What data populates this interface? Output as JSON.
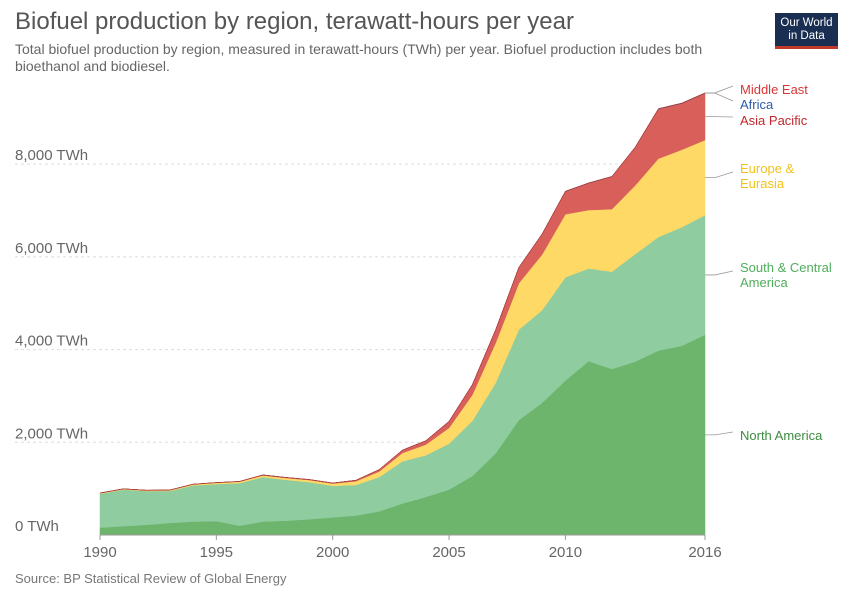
{
  "header": {
    "title": "Biofuel production by region, terawatt-hours per year",
    "subtitle": "Total biofuel production by region, measured in terawatt-hours (TWh) per year. Biofuel production includes both bioethanol and biodiesel.",
    "logo_line1": "Our World",
    "logo_line2": "in Data"
  },
  "footer": {
    "source": "Source: BP Statistical Review of Global Energy"
  },
  "chart_data": {
    "type": "area",
    "stacked": true,
    "title": "Biofuel production by region, terawatt-hours per year",
    "xlabel": "",
    "ylabel": "",
    "x": [
      1990,
      1991,
      1992,
      1993,
      1994,
      1995,
      1996,
      1997,
      1998,
      1999,
      2000,
      2001,
      2002,
      2003,
      2004,
      2005,
      2006,
      2007,
      2008,
      2009,
      2010,
      2011,
      2012,
      2013,
      2014,
      2015,
      2016
    ],
    "xlim": [
      1990,
      2016
    ],
    "ylim": [
      0,
      9600
    ],
    "x_ticks": [
      {
        "value": 1990,
        "label": "1990"
      },
      {
        "value": 1995,
        "label": "1995"
      },
      {
        "value": 2000,
        "label": "2000"
      },
      {
        "value": 2005,
        "label": "2005"
      },
      {
        "value": 2010,
        "label": "2010"
      },
      {
        "value": 2016,
        "label": "2016"
      }
    ],
    "y_ticks": [
      {
        "value": 0,
        "label": "0 TWh"
      },
      {
        "value": 2000,
        "label": "2,000 TWh"
      },
      {
        "value": 4000,
        "label": "4,000 TWh"
      },
      {
        "value": 6000,
        "label": "6,000 TWh"
      },
      {
        "value": 8000,
        "label": "8,000 TWh"
      }
    ],
    "grid": "horizontal",
    "legend_position": "right",
    "series": [
      {
        "name": "North America",
        "color": "#6db46d",
        "values": [
          160,
          190,
          220,
          260,
          290,
          300,
          200,
          290,
          310,
          340,
          380,
          420,
          510,
          680,
          820,
          980,
          1270,
          1760,
          2480,
          2850,
          3330,
          3750,
          3580,
          3740,
          3980,
          4080,
          4320
        ]
      },
      {
        "name": "South & Central America",
        "color": "#8fcc9f",
        "values": [
          730,
          790,
          730,
          690,
          780,
          800,
          920,
          960,
          880,
          800,
          680,
          660,
          740,
          910,
          900,
          990,
          1190,
          1520,
          1950,
          2000,
          2230,
          2000,
          2100,
          2320,
          2450,
          2560,
          2580
        ]
      },
      {
        "name": "Europe & Eurasia",
        "color": "#ffd966",
        "values": [
          10,
          10,
          10,
          15,
          20,
          25,
          30,
          35,
          40,
          45,
          50,
          80,
          120,
          180,
          230,
          340,
          560,
          860,
          1000,
          1200,
          1360,
          1260,
          1350,
          1480,
          1690,
          1670,
          1620
        ]
      },
      {
        "name": "Asia Pacific",
        "color": "#d9605a",
        "values": [
          5,
          5,
          5,
          5,
          5,
          5,
          5,
          10,
          10,
          10,
          10,
          20,
          40,
          60,
          80,
          140,
          220,
          280,
          340,
          440,
          490,
          580,
          700,
          820,
          1070,
          1000,
          1010
        ]
      },
      {
        "name": "Africa",
        "color": "#1f4e8c",
        "values": [
          2,
          2,
          2,
          2,
          2,
          2,
          2,
          2,
          2,
          2,
          2,
          2,
          2,
          3,
          3,
          3,
          3,
          4,
          4,
          5,
          5,
          5,
          5,
          6,
          6,
          6,
          6
        ]
      },
      {
        "name": "Middle East",
        "color": "#c0392b",
        "values": [
          0,
          0,
          0,
          0,
          0,
          0,
          0,
          0,
          0,
          0,
          0,
          0,
          0,
          0,
          0,
          1,
          1,
          1,
          1,
          1,
          1,
          1,
          1,
          2,
          2,
          2,
          2
        ]
      }
    ],
    "legend_colors": {
      "North America": "#3d8c40",
      "South & Central America": "#4fae5c",
      "Europe & Eurasia": "#f2c21c",
      "Asia Pacific": "#c0282c",
      "Africa": "#2b5ba8",
      "Middle East": "#d93636"
    }
  }
}
